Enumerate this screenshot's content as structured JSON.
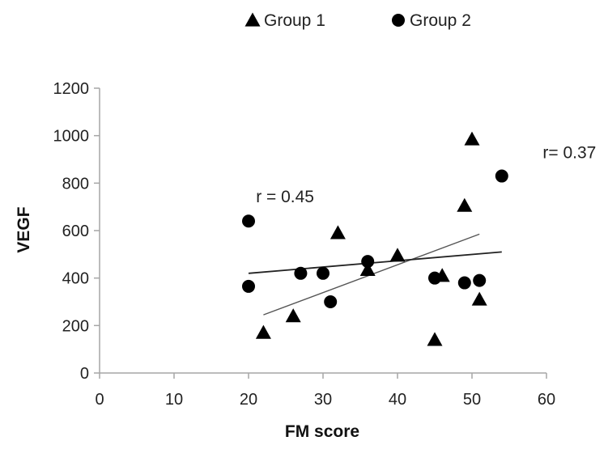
{
  "chart_data": {
    "type": "scatter",
    "title": "",
    "xlabel": "FM score",
    "ylabel": "VEGF",
    "xlim": [
      0,
      60
    ],
    "ylim": [
      0,
      1200
    ],
    "x_ticks": [
      "0",
      "10",
      "20",
      "30",
      "40",
      "50",
      "60"
    ],
    "y_ticks": [
      "0",
      "200",
      "400",
      "600",
      "800",
      "1000",
      "1200"
    ],
    "grid": false,
    "legend_position": "top",
    "series": [
      {
        "name": "Group 1",
        "marker": "triangle",
        "color": "#000000",
        "points": [
          {
            "x": 22,
            "y": 170
          },
          {
            "x": 26,
            "y": 240
          },
          {
            "x": 32,
            "y": 590
          },
          {
            "x": 36,
            "y": 435
          },
          {
            "x": 40,
            "y": 495
          },
          {
            "x": 45,
            "y": 140
          },
          {
            "x": 46,
            "y": 410
          },
          {
            "x": 49,
            "y": 705
          },
          {
            "x": 50,
            "y": 985
          },
          {
            "x": 51,
            "y": 310
          }
        ],
        "trendline": {
          "x": [
            22,
            51
          ],
          "y": [
            245,
            585
          ]
        }
      },
      {
        "name": "Group 2",
        "marker": "circle",
        "color": "#000000",
        "points": [
          {
            "x": 20,
            "y": 640
          },
          {
            "x": 20,
            "y": 365
          },
          {
            "x": 27,
            "y": 420
          },
          {
            "x": 30,
            "y": 420
          },
          {
            "x": 31,
            "y": 300
          },
          {
            "x": 36,
            "y": 470
          },
          {
            "x": 45,
            "y": 400
          },
          {
            "x": 49,
            "y": 380
          },
          {
            "x": 51,
            "y": 390
          },
          {
            "x": 54,
            "y": 830
          }
        ],
        "trendline": {
          "x": [
            20,
            54
          ],
          "y": [
            420,
            510
          ]
        }
      }
    ],
    "annotations": [
      {
        "text": "r = 0.45",
        "x": 21,
        "y": 720
      },
      {
        "text": "r= 0.37",
        "x": 59.5,
        "y": 905
      }
    ]
  }
}
